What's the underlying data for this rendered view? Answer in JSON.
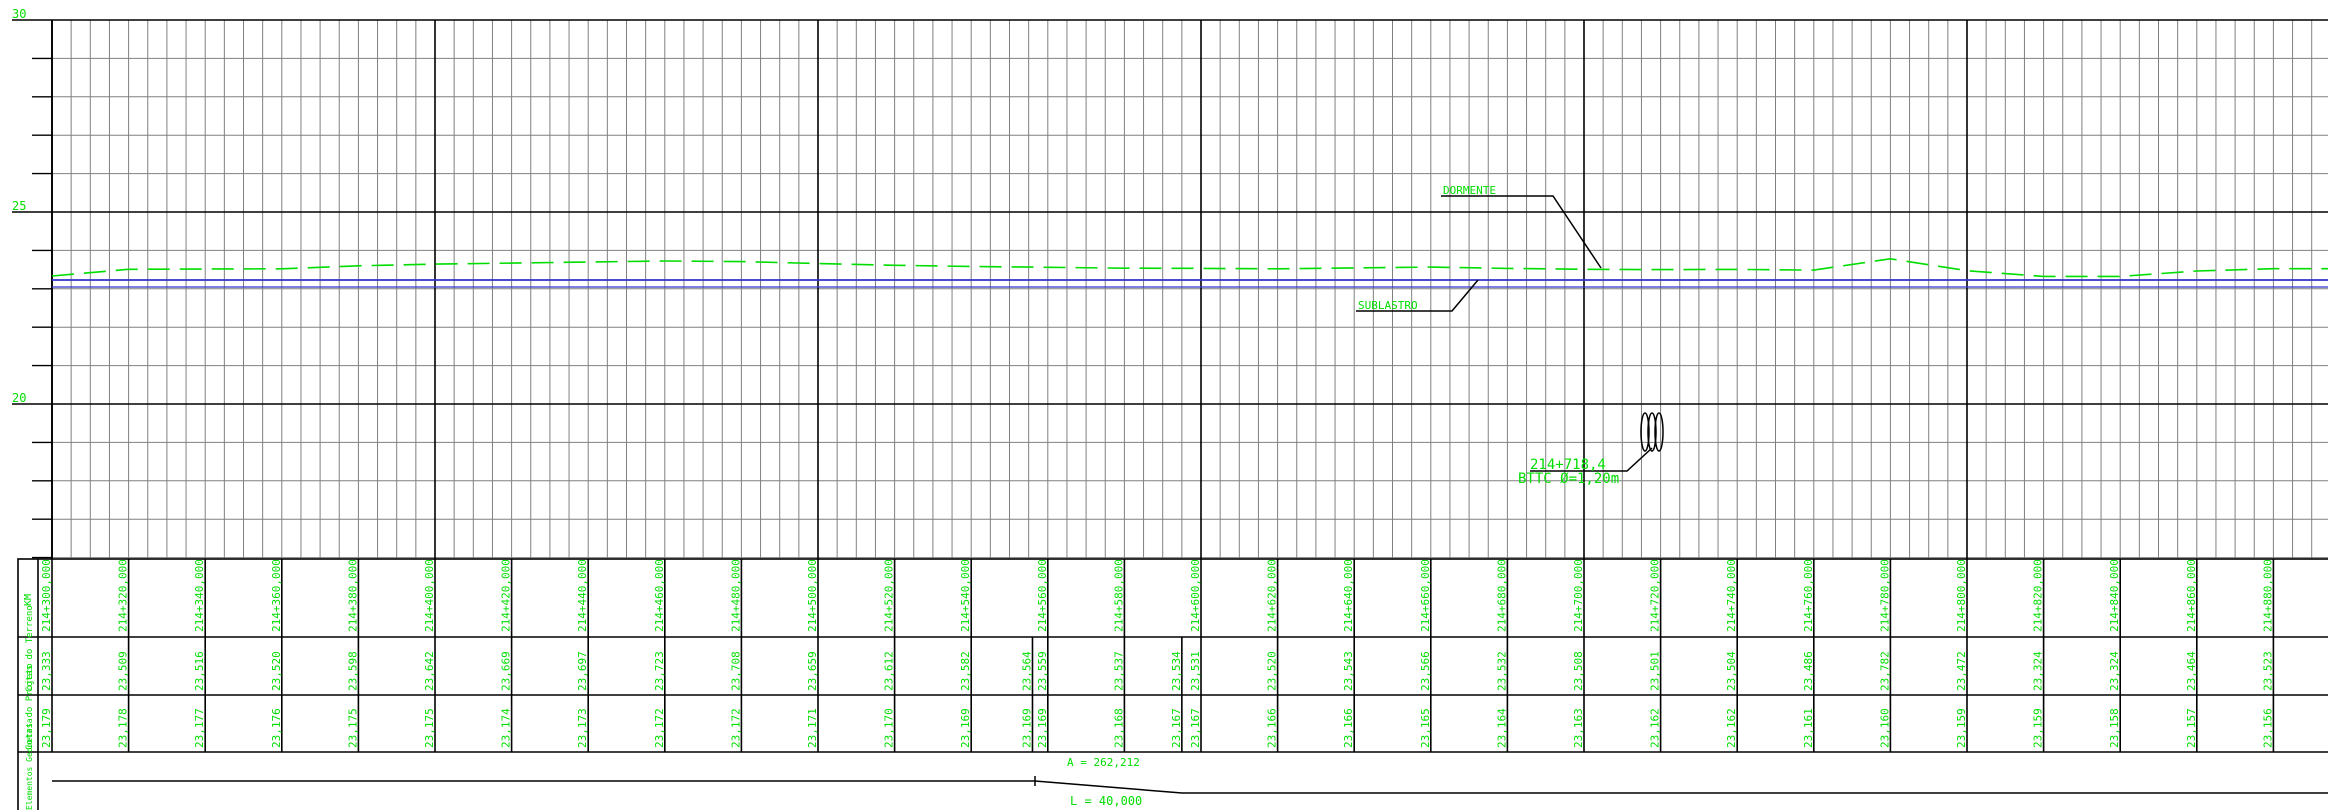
{
  "profile": {
    "y_axis": {
      "labels": [
        "30",
        "25",
        "20"
      ],
      "label_values": [
        30,
        25,
        20
      ],
      "min": 16,
      "max": 30,
      "major_step": 5,
      "minor_step": 1
    },
    "stations_km": [
      "214+300,000",
      "214+320,000",
      "214+340,000",
      "214+360,000",
      "214+380,000",
      "214+400,000",
      "214+420,000",
      "214+440,000",
      "214+460,000",
      "214+480,000",
      "214+500,000",
      "214+520,000",
      "214+540,000",
      "214+560,000",
      "214+580,000",
      "214+600,000",
      "214+620,000",
      "214+640,000",
      "214+660,000",
      "214+680,000",
      "214+700,000",
      "214+720,000",
      "214+740,000",
      "214+760,000",
      "214+780,000",
      "214+800,000",
      "214+820,000",
      "214+840,000",
      "214+860,000",
      "214+880,000"
    ],
    "chainage_m": [
      300,
      320,
      340,
      360,
      380,
      400,
      420,
      440,
      460,
      480,
      500,
      520,
      540,
      560,
      580,
      600,
      620,
      640,
      660,
      680,
      700,
      720,
      740,
      760,
      780,
      800,
      820,
      840,
      860,
      880
    ],
    "terrain_points": [
      {
        "ch": 300,
        "label": "23,333"
      },
      {
        "ch": 320,
        "label": "23,509"
      },
      {
        "ch": 340,
        "label": "23,516"
      },
      {
        "ch": 360,
        "label": "23,520"
      },
      {
        "ch": 380,
        "label": "23,598"
      },
      {
        "ch": 400,
        "label": "23,642"
      },
      {
        "ch": 420,
        "label": "23,669"
      },
      {
        "ch": 440,
        "label": "23,697"
      },
      {
        "ch": 460,
        "label": "23,723"
      },
      {
        "ch": 480,
        "label": "23,708"
      },
      {
        "ch": 500,
        "label": "23,659"
      },
      {
        "ch": 520,
        "label": "23,612"
      },
      {
        "ch": 540,
        "label": "23,582"
      },
      {
        "ch": 556,
        "label": "23,564"
      },
      {
        "ch": 560,
        "label": "23,559"
      },
      {
        "ch": 580,
        "label": "23,537"
      },
      {
        "ch": 595,
        "label": "23,534"
      },
      {
        "ch": 600,
        "label": "23,531"
      },
      {
        "ch": 620,
        "label": "23,520"
      },
      {
        "ch": 640,
        "label": "23,543"
      },
      {
        "ch": 660,
        "label": "23,566"
      },
      {
        "ch": 680,
        "label": "23,532"
      },
      {
        "ch": 700,
        "label": "23,508"
      },
      {
        "ch": 720,
        "label": "23,501"
      },
      {
        "ch": 740,
        "label": "23,504"
      },
      {
        "ch": 760,
        "label": "23,486"
      },
      {
        "ch": 780,
        "label": "23,782"
      },
      {
        "ch": 800,
        "label": "23,472"
      },
      {
        "ch": 820,
        "label": "23,324"
      },
      {
        "ch": 840,
        "label": "23,324"
      },
      {
        "ch": 860,
        "label": "23,464"
      },
      {
        "ch": 880,
        "label": "23,523"
      }
    ],
    "project_points": [
      {
        "ch": 300,
        "label": "23,179"
      },
      {
        "ch": 320,
        "label": "23,178"
      },
      {
        "ch": 340,
        "label": "23,177"
      },
      {
        "ch": 360,
        "label": "23,176"
      },
      {
        "ch": 380,
        "label": "23,175"
      },
      {
        "ch": 400,
        "label": "23,175"
      },
      {
        "ch": 420,
        "label": "23,174"
      },
      {
        "ch": 440,
        "label": "23,173"
      },
      {
        "ch": 460,
        "label": "23,172"
      },
      {
        "ch": 480,
        "label": "23,172"
      },
      {
        "ch": 500,
        "label": "23,171"
      },
      {
        "ch": 520,
        "label": "23,170"
      },
      {
        "ch": 540,
        "label": "23,169"
      },
      {
        "ch": 556,
        "label": "23,169"
      },
      {
        "ch": 560,
        "label": "23,169"
      },
      {
        "ch": 580,
        "label": "23,168"
      },
      {
        "ch": 595,
        "label": "23,167"
      },
      {
        "ch": 600,
        "label": "23,167"
      },
      {
        "ch": 620,
        "label": "23,166"
      },
      {
        "ch": 640,
        "label": "23,166"
      },
      {
        "ch": 660,
        "label": "23,165"
      },
      {
        "ch": 680,
        "label": "23,164"
      },
      {
        "ch": 700,
        "label": "23,163"
      },
      {
        "ch": 720,
        "label": "23,162"
      },
      {
        "ch": 740,
        "label": "23,162"
      },
      {
        "ch": 760,
        "label": "23,161"
      },
      {
        "ch": 780,
        "label": "23,160"
      },
      {
        "ch": 800,
        "label": "23,159"
      },
      {
        "ch": 820,
        "label": "23,159"
      },
      {
        "ch": 840,
        "label": "23,158"
      },
      {
        "ch": 860,
        "label": "23,157"
      },
      {
        "ch": 880,
        "label": "23,156"
      }
    ],
    "annotations": {
      "dormente": "DORMENTE",
      "sublastro": "SUBLASTRO",
      "culvert_station": "214+718,4",
      "culvert_desc": "BTTC Ø=1,20m"
    },
    "band_labels": {
      "km": "KM",
      "terreno": "Cotas do Terreno",
      "projeto": "Cotas do Projeto",
      "geometria": "Elementos Geometria"
    },
    "geometry": {
      "a_label": "A = 262,212",
      "l_label": "L = 40,000"
    },
    "colors": {
      "annotation": "#00dd00",
      "grid": "#808080",
      "grid_major": "#000000",
      "subgrade_line": "#3333cc",
      "background": "#ffffff"
    }
  }
}
